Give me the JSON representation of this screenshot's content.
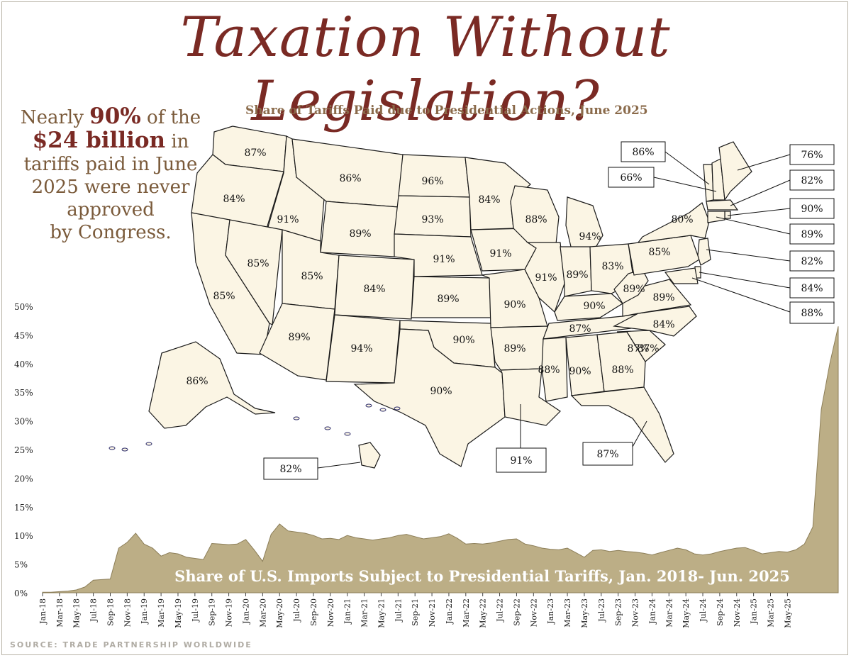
{
  "title": "Taxation Without Legislation?",
  "callout": {
    "line1_pre": "Nearly ",
    "line1_bold": "90%",
    "line1_post": " of the",
    "line2_bold": "$24 billion",
    "line2_post": " in",
    "line3": "tariffs paid in June",
    "line4": "2025 were never",
    "line5": "approved",
    "line6": "by Congress."
  },
  "source": "Source: Trade Partnership Worldwide",
  "colors": {
    "title": "#7a2a24",
    "subtitle": "#8a6a4a",
    "map_fill": "#fbf5e4",
    "area_fill": "#bcae86",
    "area_stroke": "#8c7e58"
  },
  "chart_data": [
    {
      "type": "map",
      "title": "Share of Tariffs Paid due to Presidential Actions, June 2025",
      "states": [
        {
          "state": "WA",
          "value": "87%"
        },
        {
          "state": "OR",
          "value": "84%"
        },
        {
          "state": "CA",
          "value": "85%"
        },
        {
          "state": "ID",
          "value": "91%"
        },
        {
          "state": "NV",
          "value": "85%"
        },
        {
          "state": "MT",
          "value": "86%"
        },
        {
          "state": "WY",
          "value": "89%"
        },
        {
          "state": "UT",
          "value": "85%"
        },
        {
          "state": "AZ",
          "value": "89%"
        },
        {
          "state": "CO",
          "value": "84%"
        },
        {
          "state": "NM",
          "value": "94%"
        },
        {
          "state": "ND",
          "value": "96%"
        },
        {
          "state": "SD",
          "value": "93%"
        },
        {
          "state": "NE",
          "value": "91%"
        },
        {
          "state": "KS",
          "value": "89%"
        },
        {
          "state": "OK",
          "value": "90%"
        },
        {
          "state": "TX",
          "value": "90%"
        },
        {
          "state": "MN",
          "value": "84%"
        },
        {
          "state": "IA",
          "value": "91%"
        },
        {
          "state": "MO",
          "value": "90%"
        },
        {
          "state": "AR",
          "value": "89%"
        },
        {
          "state": "LA",
          "value": "91%"
        },
        {
          "state": "WI",
          "value": "88%"
        },
        {
          "state": "IL",
          "value": "91%"
        },
        {
          "state": "MI",
          "value": "94%"
        },
        {
          "state": "IN",
          "value": "89%"
        },
        {
          "state": "OH",
          "value": "83%"
        },
        {
          "state": "KY",
          "value": "90%"
        },
        {
          "state": "TN",
          "value": "87%"
        },
        {
          "state": "MS",
          "value": "88%"
        },
        {
          "state": "AL",
          "value": "90%"
        },
        {
          "state": "GA",
          "value": "88%"
        },
        {
          "state": "FL",
          "value": "87%"
        },
        {
          "state": "SC",
          "value": "87%"
        },
        {
          "state": "NC",
          "value": "84%"
        },
        {
          "state": "VA",
          "value": "89%"
        },
        {
          "state": "WV",
          "value": "89%"
        },
        {
          "state": "PA",
          "value": "85%"
        },
        {
          "state": "NY",
          "value": "80%"
        },
        {
          "state": "AK",
          "value": "86%"
        },
        {
          "state": "HI",
          "value": "82%"
        },
        {
          "state": "VT",
          "value": "86%"
        },
        {
          "state": "NH",
          "value": "66%"
        },
        {
          "state": "ME",
          "value": "76%"
        },
        {
          "state": "MA",
          "value": "82%"
        },
        {
          "state": "RI",
          "value": "90%"
        },
        {
          "state": "CT",
          "value": "89%"
        },
        {
          "state": "NJ",
          "value": "82%"
        },
        {
          "state": "DE",
          "value": "84%"
        },
        {
          "state": "MD",
          "value": "88%"
        }
      ]
    },
    {
      "type": "area",
      "title": "Share of U.S. Imports Subject to Presidential Tariffs, Jan. 2018- Jun. 2025",
      "ylim": [
        0,
        50
      ],
      "yticks": [
        "0%",
        "5%",
        "10%",
        "15%",
        "20%",
        "25%",
        "30%",
        "35%",
        "40%",
        "45%",
        "50%"
      ],
      "xticks": [
        "Jan-18",
        "Mar-18",
        "May-18",
        "Jul-18",
        "Sep-18",
        "Nov-18",
        "Jan-19",
        "Mar-19",
        "May-19",
        "Jul-19",
        "Sep-19",
        "Nov-19",
        "Jan-20",
        "Mar-20",
        "May-20",
        "Jul-20",
        "Sep-20",
        "Nov-20",
        "Jan-21",
        "Mar-21",
        "May-21",
        "Jul-21",
        "Sep-21",
        "Nov-21",
        "Jan-22",
        "Mar-22",
        "May-22",
        "Jul-22",
        "Sep-22",
        "Nov-22",
        "Jan-23",
        "Mar-23",
        "May-23",
        "Jul-23",
        "Sep-23",
        "Nov-23",
        "Jan-24",
        "Mar-24",
        "May-24",
        "Jul-24",
        "Sep-24",
        "Nov-24",
        "Jan-25",
        "Mar-25",
        "May-25"
      ],
      "values": [
        0.1,
        0.1,
        0.2,
        0.3,
        0.5,
        1.0,
        2.2,
        2.3,
        2.4,
        7.8,
        8.8,
        10.4,
        8.5,
        7.8,
        6.4,
        7.0,
        6.8,
        6.2,
        6.0,
        5.8,
        8.6,
        8.5,
        8.4,
        8.5,
        9.3,
        7.5,
        5.5,
        10.2,
        12.0,
        10.8,
        10.6,
        10.4,
        10.0,
        9.4,
        9.5,
        9.3,
        10.0,
        9.6,
        9.4,
        9.2,
        9.4,
        9.6,
        10.0,
        10.2,
        9.8,
        9.4,
        9.6,
        9.8,
        10.3,
        9.5,
        8.5,
        8.6,
        8.5,
        8.7,
        9.0,
        9.3,
        9.4,
        8.5,
        8.2,
        7.8,
        7.6,
        7.5,
        7.8,
        7.0,
        6.2,
        7.4,
        7.5,
        7.2,
        7.4,
        7.2,
        7.1,
        6.9,
        6.6,
        7.0,
        7.4,
        7.8,
        7.5,
        6.8,
        6.6,
        6.8,
        7.2,
        7.5,
        7.8,
        7.9,
        7.4,
        6.8,
        7.0,
        7.2,
        7.1,
        7.5,
        8.5,
        11.5,
        32.0,
        40.0,
        46.5
      ]
    }
  ]
}
